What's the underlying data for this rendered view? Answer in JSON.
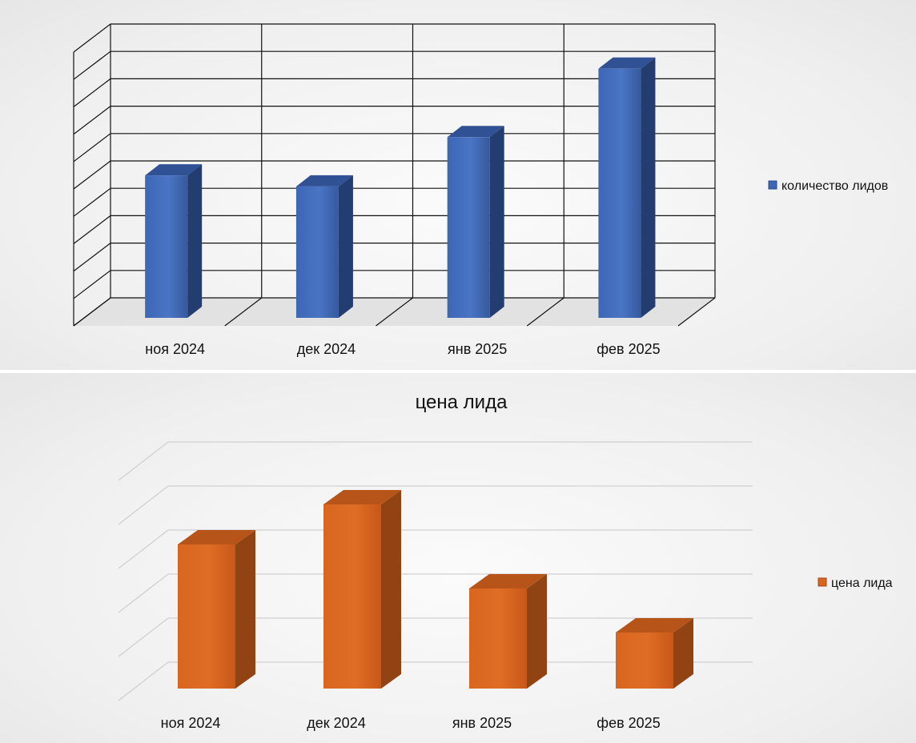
{
  "chart_data": [
    {
      "type": "bar",
      "title": "",
      "categories": [
        "ноя 2024",
        "дек 2024",
        "янв 2025",
        "фев 2025"
      ],
      "series": [
        {
          "name": "количество лидов",
          "values": [
            5.2,
            4.8,
            6.6,
            9.1
          ]
        }
      ],
      "ylim": [
        0,
        10
      ],
      "grid": true,
      "legend_position": "right",
      "color": "#3a63b4"
    },
    {
      "type": "bar",
      "title": "цена лида",
      "categories": [
        "ноя 2024",
        "дек 2024",
        "янв 2025",
        "фев 2025"
      ],
      "series": [
        {
          "name": "цена лида",
          "values": [
            3.6,
            4.6,
            2.5,
            1.4
          ]
        }
      ],
      "ylim": [
        0,
        5.5
      ],
      "grid": true,
      "legend_position": "right",
      "color": "#d0601d"
    }
  ]
}
